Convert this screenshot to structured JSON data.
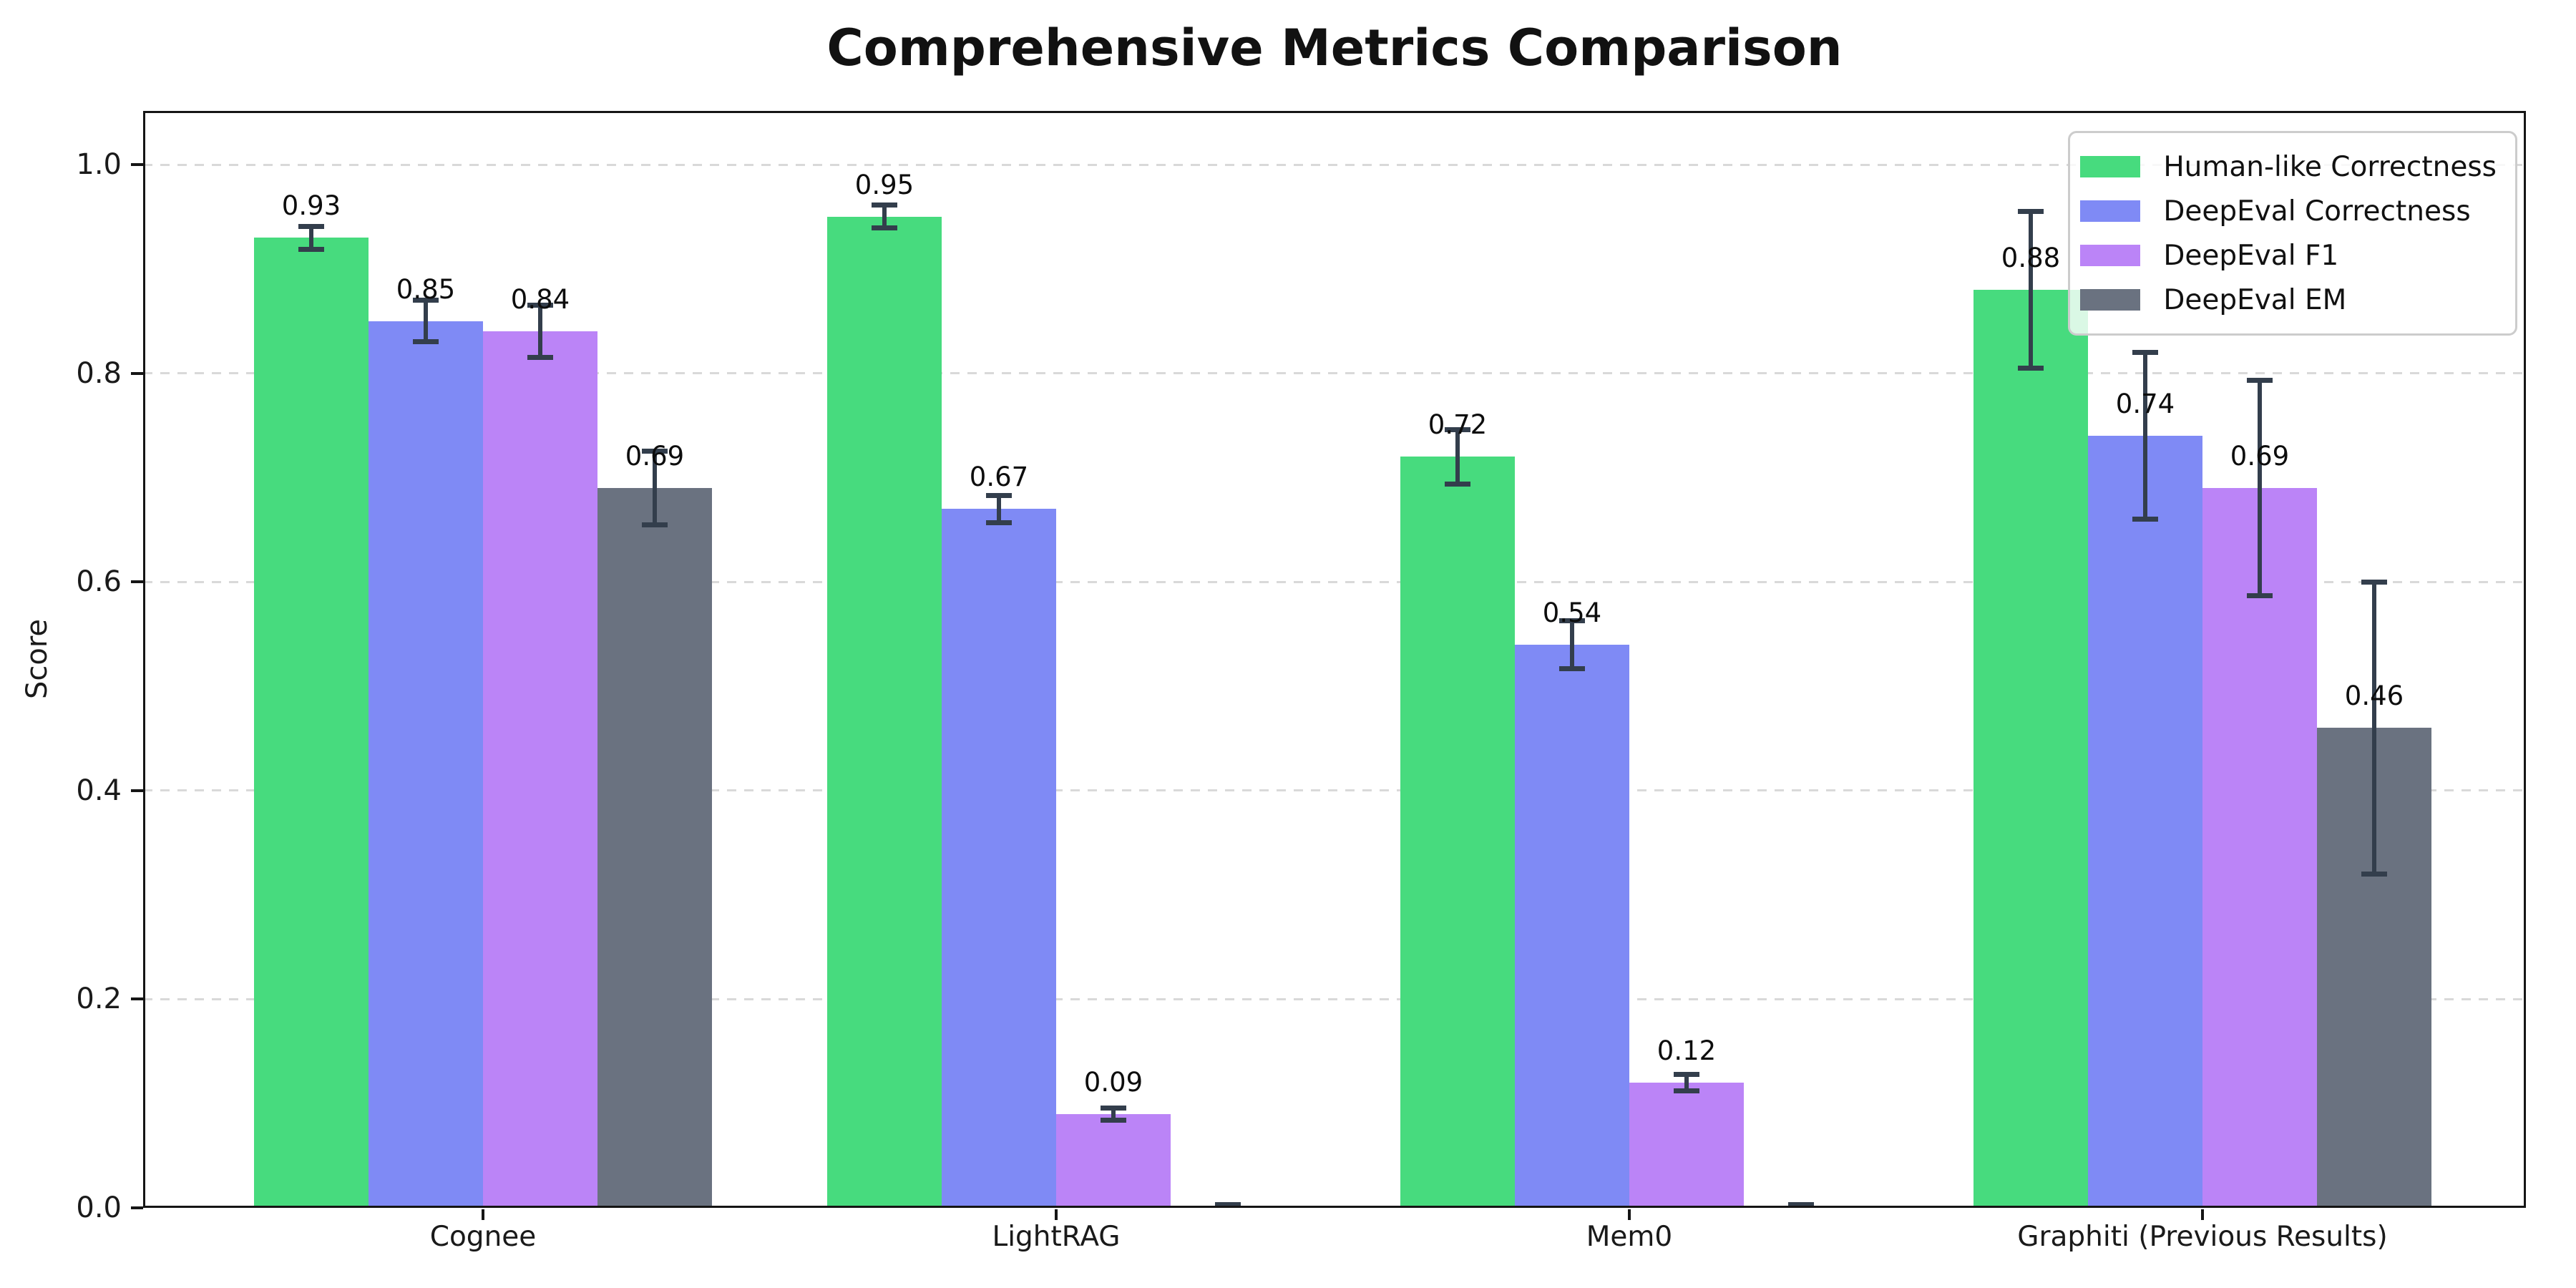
{
  "figure": {
    "title": "Comprehensive Metrics Comparison",
    "background_color": "#ffffff",
    "spine_color": "#151515",
    "grid_color": "#d9d9d9",
    "error_bar_color": "#333E4C"
  },
  "chart_data": {
    "type": "bar",
    "title": "Comprehensive Metrics Comparison",
    "xlabel": "",
    "ylabel": "Score",
    "categories": [
      "Cognee",
      "LightRAG",
      "Mem0",
      "Graphiti (Previous Results)"
    ],
    "ylim": [
      0.0,
      1.05
    ],
    "yticks": [
      0.0,
      0.2,
      0.4,
      0.6,
      0.8,
      1.0
    ],
    "ytick_labels": [
      "0.0",
      "0.2",
      "0.4",
      "0.6",
      "0.8",
      "1.0"
    ],
    "grid": "horizontal-dashed",
    "legend_position": "upper-right",
    "error_bars": true,
    "series": [
      {
        "name": "Human-like Correctness",
        "color": "#47DB7E",
        "values": [
          0.93,
          0.95,
          0.72,
          0.88
        ],
        "errors": [
          0.011,
          0.011,
          0.026,
          0.075
        ],
        "value_labels": [
          "0.93",
          "0.95",
          "0.72",
          "0.88"
        ]
      },
      {
        "name": "DeepEval Correctness",
        "color": "#7F8AF5",
        "values": [
          0.85,
          0.67,
          0.54,
          0.74
        ],
        "errors": [
          0.02,
          0.013,
          0.023,
          0.08
        ],
        "value_labels": [
          "0.85",
          "0.67",
          "0.54",
          "0.74"
        ]
      },
      {
        "name": "DeepEval F1",
        "color": "#BB84F7",
        "values": [
          0.84,
          0.09,
          0.12,
          0.69
        ],
        "errors": [
          0.025,
          0.006,
          0.008,
          0.103
        ],
        "value_labels": [
          "0.84",
          "0.09",
          "0.12",
          "0.69"
        ]
      },
      {
        "name": "DeepEval EM",
        "color": "#6A7280",
        "values": [
          0.69,
          0.0,
          0.0,
          0.46
        ],
        "errors": [
          0.035,
          0.003,
          0.003,
          0.14
        ],
        "value_labels": [
          "0.69",
          "",
          "",
          "0.46"
        ]
      }
    ]
  }
}
